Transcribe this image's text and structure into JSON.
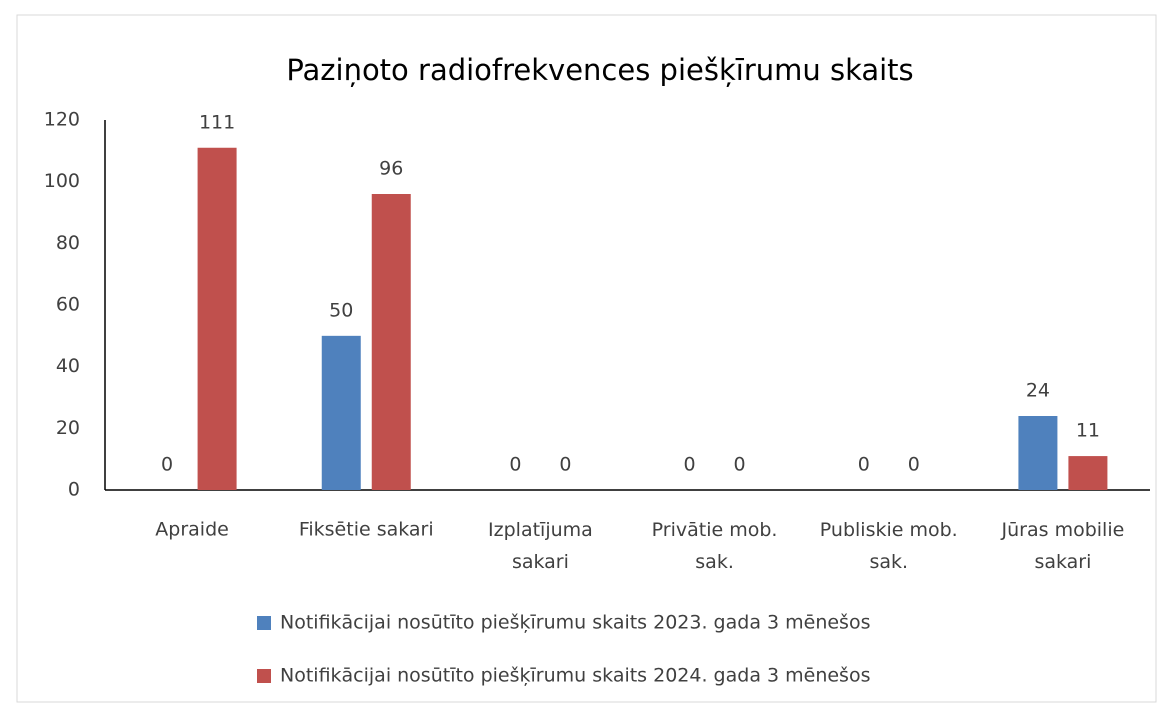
{
  "chart_data": {
    "type": "bar",
    "title": "Paziņoto radiofrekvences  piešķīrumu skaits",
    "categories": [
      "Apraide",
      "Fiksētie sakari",
      "Izplatījuma sakari",
      "Privātie mob. sak.",
      "Publiskie mob. sak.",
      "Jūras mobilie sakari"
    ],
    "series": [
      {
        "name": "Notifikācijai nosūtīto piešķīrumu skaits 2023. gada 3 mēnešos",
        "color": "#4f81bd",
        "values": [
          0,
          50,
          0,
          0,
          0,
          24
        ]
      },
      {
        "name": "Notifikācijai nosūtīto piešķīrumu skaits 2024. gada 3 mēnešos",
        "color": "#c0504d",
        "values": [
          111,
          96,
          0,
          0,
          0,
          11
        ]
      }
    ],
    "ylim": [
      0,
      120
    ],
    "yticks": [
      0,
      20,
      40,
      60,
      80,
      100,
      120
    ],
    "grid": false,
    "legend": "bottom"
  }
}
